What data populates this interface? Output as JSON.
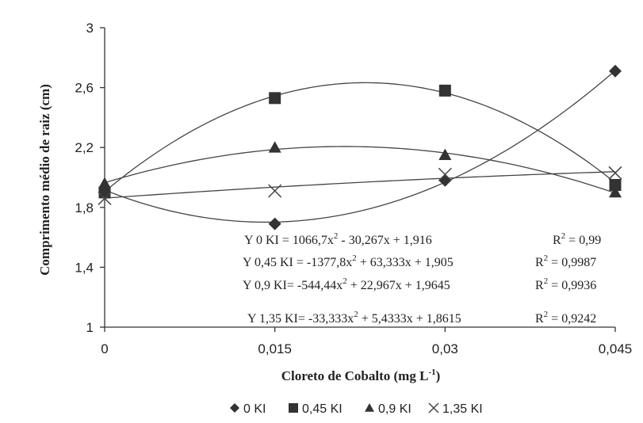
{
  "chart_data": {
    "type": "scatter",
    "xlabel_base": "Cloreto de Cobalto (mg L",
    "xlabel_sup": "-1",
    "xlabel_tail": ")",
    "ylabel": "Comprimento médio de raiz (cm)",
    "x": [
      0,
      0.015,
      0.03,
      0.045
    ],
    "x_tick_labels": [
      "0",
      "0,015",
      "0,03",
      "0,045"
    ],
    "ylim": [
      1,
      3
    ],
    "y_ticks": [
      1,
      1.4,
      1.8,
      2.2,
      2.6,
      3
    ],
    "y_tick_labels": [
      "1",
      "1,4",
      "1,8",
      "2,2",
      "2,6",
      "3"
    ],
    "grid": false,
    "legend_position": "bottom",
    "series": [
      {
        "name": "0 KI",
        "marker": "diamond",
        "values": [
          1.91,
          1.69,
          1.98,
          2.71
        ],
        "trend": {
          "a": 1066.7,
          "b": -30.267,
          "c": 1.916
        }
      },
      {
        "name": "0,45 KI",
        "marker": "square",
        "values": [
          1.9,
          2.53,
          2.58,
          1.95
        ],
        "trend": {
          "a": -1377.8,
          "b": 63.333,
          "c": 1.905
        }
      },
      {
        "name": "0,9 KI",
        "marker": "triangle",
        "values": [
          1.96,
          2.2,
          2.15,
          1.9
        ],
        "trend": {
          "a": -544.44,
          "b": 22.967,
          "c": 1.9645
        }
      },
      {
        "name": "1,35 KI",
        "marker": "cross",
        "values": [
          1.86,
          1.91,
          2.02,
          2.03
        ],
        "trend": {
          "a": -33.333,
          "b": 5.4333,
          "c": 1.8615
        }
      }
    ],
    "equations": [
      {
        "prefix": "Y 0 KI = 1066,7x",
        "suffix": " - 30,267x + 1,916",
        "r2_label": "R",
        "r2_value": " = 0,99"
      },
      {
        "prefix": "Y 0,45 KI = -1377,8x",
        "suffix": " + 63,333x + 1,905",
        "r2_label": "R",
        "r2_value": " = 0,9987"
      },
      {
        "prefix": "Y 0,9 KI= -544,44x",
        "suffix": " + 22,967x + 1,9645",
        "r2_label": "R",
        "r2_value": " = 0,9936"
      },
      {
        "prefix": "Y 1,35 KI= -33,333x",
        "suffix": " + 5,4333x + 1,8615",
        "r2_label": "R",
        "r2_value": " = 0,9242"
      }
    ],
    "sup2": "2"
  }
}
